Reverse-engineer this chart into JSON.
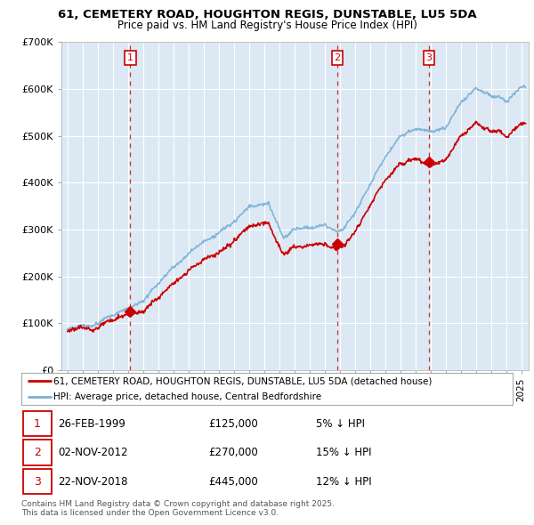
{
  "title": "61, CEMETERY ROAD, HOUGHTON REGIS, DUNSTABLE, LU5 5DA",
  "subtitle": "Price paid vs. HM Land Registry's House Price Index (HPI)",
  "legend_line1": "61, CEMETERY ROAD, HOUGHTON REGIS, DUNSTABLE, LU5 5DA (detached house)",
  "legend_line2": "HPI: Average price, detached house, Central Bedfordshire",
  "sale_color": "#cc0000",
  "hpi_color": "#7ab0d4",
  "chart_bg": "#dce9f5",
  "transactions": [
    {
      "num": 1,
      "date": "26-FEB-1999",
      "price": "£125,000",
      "pct": "5% ↓ HPI",
      "year": 1999.15
    },
    {
      "num": 2,
      "date": "02-NOV-2012",
      "price": "£270,000",
      "pct": "15% ↓ HPI",
      "year": 2012.84
    },
    {
      "num": 3,
      "date": "22-NOV-2018",
      "price": "£445,000",
      "pct": "12% ↓ HPI",
      "year": 2018.9
    }
  ],
  "transaction_values": [
    125000,
    270000,
    445000
  ],
  "footer": "Contains HM Land Registry data © Crown copyright and database right 2025.\nThis data is licensed under the Open Government Licence v3.0.",
  "ylim": [
    0,
    700000
  ],
  "yticks": [
    0,
    100000,
    200000,
    300000,
    400000,
    500000,
    600000,
    700000
  ],
  "xlim_start": 1994.6,
  "xlim_end": 2025.5
}
